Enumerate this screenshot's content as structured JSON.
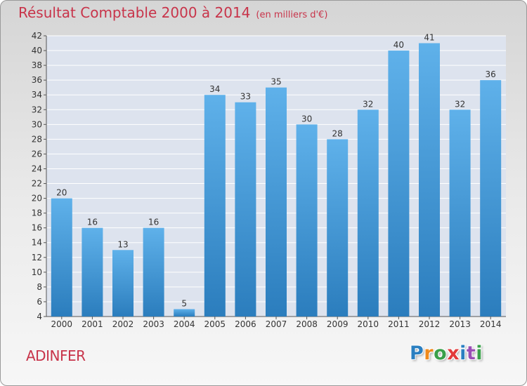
{
  "header": {
    "title": "Résultat Comptable 2000 à 2014",
    "unit": "(en milliers d'€)"
  },
  "footer": {
    "commune": "ADINFER",
    "logo_text": "Proxiti",
    "logo_colors": [
      "#2a7fc1",
      "#f08a1c",
      "#3aa04a",
      "#e23b3b",
      "#2a7fc1",
      "#9b4fb5",
      "#3aa04a"
    ]
  },
  "chart_data": {
    "type": "bar",
    "title": "Résultat Comptable 2000 à 2014",
    "subtitle": "(en milliers d'€)",
    "xlabel": "",
    "ylabel": "",
    "categories": [
      "2000",
      "2001",
      "2002",
      "2003",
      "2004",
      "2005",
      "2006",
      "2007",
      "2008",
      "2009",
      "2010",
      "2011",
      "2012",
      "2013",
      "2014"
    ],
    "values": [
      20,
      16,
      13,
      16,
      5,
      34,
      33,
      35,
      30,
      28,
      32,
      40,
      41,
      32,
      36
    ],
    "ylim": [
      4,
      42
    ],
    "yticks": [
      4,
      6,
      8,
      10,
      12,
      14,
      16,
      18,
      20,
      22,
      24,
      26,
      28,
      30,
      32,
      34,
      36,
      38,
      40,
      42
    ],
    "grid": true,
    "legend": "none",
    "bar_color_light": "#5fb1ea",
    "bar_color_dark": "#2b7dbd",
    "plot_background": "#dde3ee"
  }
}
